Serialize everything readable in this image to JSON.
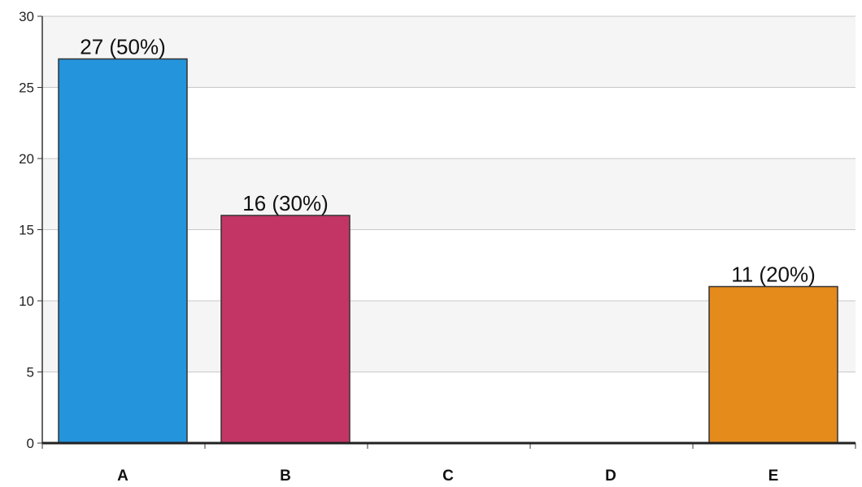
{
  "chart_data": {
    "type": "bar",
    "title": "",
    "xlabel": "",
    "ylabel": "",
    "categories": [
      "A",
      "B",
      "C",
      "D",
      "E"
    ],
    "values": [
      27,
      16,
      0,
      0,
      11
    ],
    "data_labels": [
      "27 (50%)",
      "16 (30%)",
      "",
      "",
      "11 (20%)"
    ],
    "colors": [
      "#2494dc",
      "#c33565",
      "#999999",
      "#999999",
      "#e58b1c"
    ],
    "ylim": [
      0,
      30
    ],
    "yticks": [
      0,
      5,
      10,
      15,
      20,
      25,
      30
    ],
    "grid": true,
    "band_color": "#f5f5f5",
    "legend": "none"
  }
}
